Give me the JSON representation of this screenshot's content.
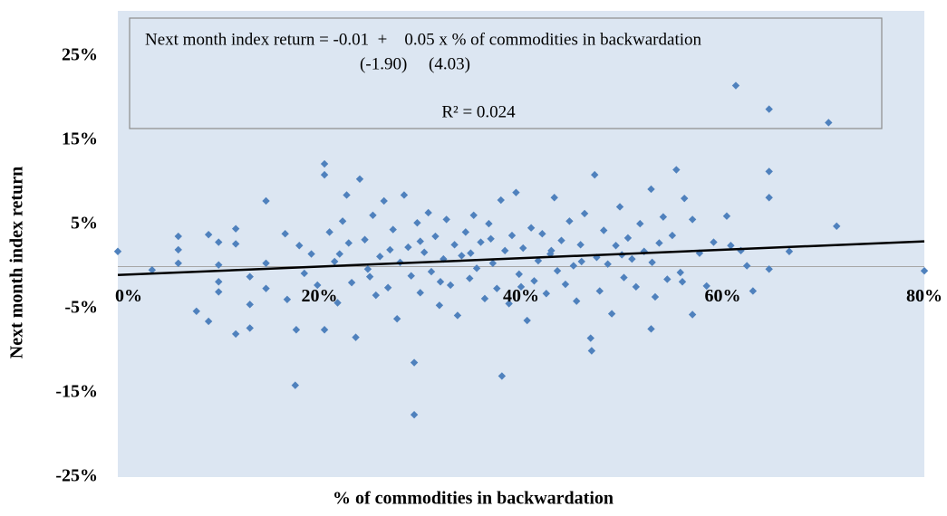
{
  "chart_data": {
    "type": "scatter",
    "x_label": "% of commodities in backwardation",
    "y_label": "Next month index return",
    "annotations": [
      "Next month index return = -0.01  +    0.05 x % of commodities in backwardation",
      "(-1.90)     (4.03)",
      "R² = 0.024"
    ],
    "color": "#4f81bd",
    "background": "#dce6f2",
    "xlim": [
      0,
      80
    ],
    "xticks": [
      {
        "value": 0,
        "label": "0%"
      },
      {
        "value": 20,
        "label": "20%"
      },
      {
        "value": 40,
        "label": "40%"
      },
      {
        "value": 60,
        "label": "60%"
      },
      {
        "value": 80,
        "label": "80%"
      }
    ],
    "ylim": [
      -25,
      30
    ],
    "yticks": [
      {
        "value": -25,
        "label": "-25%"
      },
      {
        "value": -15,
        "label": "-15%"
      },
      {
        "value": -5,
        "label": "-5%"
      },
      {
        "value": 5,
        "label": "5%"
      },
      {
        "value": 15,
        "label": "15%"
      },
      {
        "value": 25,
        "label": "25%"
      }
    ],
    "x": [
      0,
      3.4,
      6,
      6,
      6,
      7.8,
      9,
      9,
      10,
      10,
      10,
      10,
      11.7,
      11.7,
      11.7,
      13.1,
      13.1,
      13.1,
      14.7,
      14.7,
      14.7,
      16.6,
      16.8,
      17.6,
      17.7,
      18,
      18.5,
      19.2,
      19.8,
      20.5,
      20.5,
      20.5,
      21,
      21.5,
      21.8,
      22.3,
      22.7,
      22.9,
      23.2,
      23.6,
      24,
      24.5,
      24.8,
      25.3,
      25.6,
      26,
      26.4,
      26.8,
      27.3,
      27.7,
      28,
      28.4,
      28.8,
      29.1,
      29.4,
      29.4,
      29.7,
      30,
      30.4,
      30.8,
      31.1,
      31.5,
      31.9,
      32.3,
      32.6,
      33,
      33.4,
      33.7,
      34.1,
      34.5,
      34.9,
      35.3,
      35.6,
      36,
      36.4,
      36.8,
      37.2,
      37.6,
      38,
      38.1,
      38.4,
      38.8,
      39.1,
      39.5,
      39.8,
      40.2,
      40.6,
      41,
      41.3,
      41.7,
      42.1,
      42.5,
      42.9,
      43.3,
      43.6,
      44,
      44.4,
      44.8,
      45.2,
      45.5,
      45.9,
      46.3,
      46.9,
      47,
      47.3,
      47.5,
      47.8,
      48.2,
      48.6,
      49,
      49.4,
      49.8,
      50.2,
      50.6,
      51,
      51.4,
      51.8,
      52.2,
      52.9,
      52.9,
      53.3,
      53.7,
      54.1,
      54.5,
      55,
      55.4,
      55.8,
      56.2,
      57,
      57,
      57.7,
      58.4,
      59.1,
      60.4,
      60.8,
      61.3,
      61.8,
      62.4,
      63,
      64.6,
      64.6,
      64.6,
      64.6,
      66.6,
      70.5,
      71.3,
      80,
      22,
      25,
      27,
      30,
      32,
      35,
      37,
      40,
      43,
      46,
      50,
      53,
      56
    ],
    "y": [
      1.8,
      -0.4,
      3.6,
      2,
      0.4,
      -5.3,
      3.8,
      -6.5,
      2.9,
      0.2,
      -1.8,
      -3,
      4.5,
      2.7,
      -8,
      -1.2,
      -4.5,
      -7.3,
      7.8,
      0.4,
      -2.6,
      3.9,
      -3.9,
      -14.1,
      -7.5,
      2.5,
      -0.8,
      1.5,
      -2.2,
      12.2,
      10.9,
      -7.5,
      4.1,
      0.6,
      -4.3,
      5.4,
      8.5,
      2.8,
      -1.9,
      -8.4,
      10.4,
      3.2,
      -0.3,
      6.1,
      -3.4,
      1.2,
      7.8,
      -2.5,
      4.4,
      -6.2,
      0.5,
      8.5,
      2.3,
      -1.1,
      -11.4,
      -17.6,
      5.2,
      -3.1,
      1.7,
      6.4,
      -0.6,
      3.6,
      -4.6,
      0.9,
      5.6,
      -2.2,
      2.6,
      -5.8,
      1.3,
      4.1,
      -1.4,
      6.1,
      -0.2,
      2.9,
      -3.8,
      5.1,
      0.4,
      -2.6,
      7.9,
      -13,
      1.9,
      -4.4,
      3.7,
      8.8,
      -0.9,
      2.2,
      -6.4,
      4.6,
      -1.7,
      0.7,
      3.9,
      -3.2,
      1.5,
      8.2,
      -0.5,
      3.1,
      -2.1,
      5.4,
      0.1,
      -4.1,
      2.6,
      6.3,
      -8.5,
      -10,
      10.9,
      1.1,
      -2.9,
      4.3,
      0.3,
      -5.6,
      2.5,
      7.1,
      -1.3,
      3.4,
      0.9,
      -2.4,
      5.1,
      1.8,
      9.2,
      -7.4,
      -3.6,
      2.8,
      5.9,
      -1.5,
      3.7,
      11.5,
      -0.7,
      8.1,
      5.6,
      -5.7,
      1.6,
      -2.3,
      2.9,
      6,
      2.5,
      21.5,
      1.9,
      0.1,
      -2.9,
      18.7,
      11.3,
      8.2,
      -0.3,
      1.8,
      17.1,
      4.8,
      -0.5,
      1.5,
      -1.2,
      2,
      3,
      -1.8,
      1.6,
      3.3,
      -2.4,
      1.9,
      0.6,
      1.4,
      0.5,
      -1.8
    ],
    "trendline": {
      "x": [
        0,
        80
      ],
      "y": [
        -1,
        3
      ],
      "color": "#000000"
    }
  }
}
